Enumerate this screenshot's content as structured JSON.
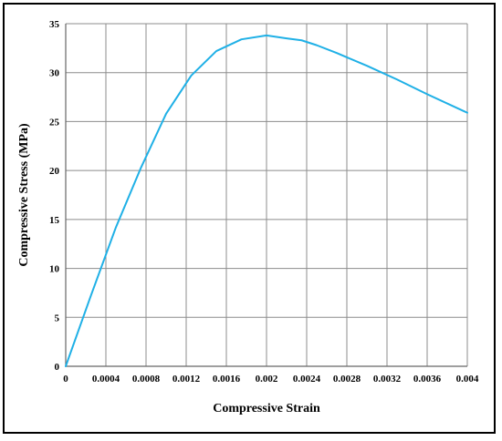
{
  "chart_data": {
    "type": "line",
    "title": "",
    "xlabel": "Compressive Strain",
    "ylabel": "Compressive Stress  (MPa)",
    "xlim": [
      0,
      0.004
    ],
    "ylim": [
      0,
      35
    ],
    "x_ticks": [
      0,
      0.0004,
      0.0008,
      0.0012,
      0.0016,
      0.002,
      0.0024,
      0.0028,
      0.0032,
      0.0036,
      0.004
    ],
    "x_tick_labels": [
      "0",
      "0.0004",
      "0.0008",
      "0.0012",
      "0.0016",
      "0.002",
      "0.0024",
      "0.0028",
      "0.0032",
      "0.0036",
      "0.004"
    ],
    "y_ticks": [
      0,
      5,
      10,
      15,
      20,
      25,
      30,
      35
    ],
    "y_tick_labels": [
      "0",
      "5",
      "10",
      "15",
      "20",
      "25",
      "30",
      "35"
    ],
    "grid": true,
    "legend": "none",
    "series": [
      {
        "color": "#1fb0e6",
        "x": [
          0,
          0.00025,
          0.0005,
          0.00075,
          0.001,
          0.00125,
          0.0015,
          0.00175,
          0.002,
          0.0022,
          0.00235,
          0.0025,
          0.0027,
          0.003,
          0.0033,
          0.0036,
          0.004
        ],
        "y": [
          0,
          7.2,
          14.2,
          20.3,
          25.8,
          29.7,
          32.2,
          33.4,
          33.8,
          33.5,
          33.3,
          32.8,
          32.0,
          30.7,
          29.3,
          27.8,
          25.9
        ]
      }
    ]
  }
}
